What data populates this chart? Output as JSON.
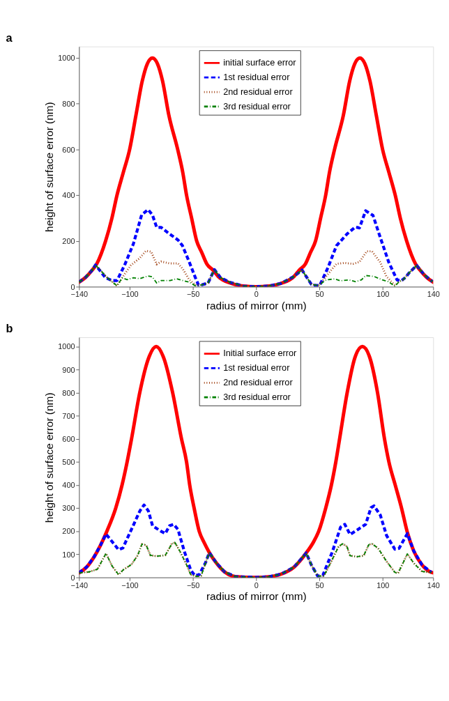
{
  "chart_data": [
    {
      "type": "line",
      "title": "a",
      "xlabel": "radius of mirror (mm)",
      "ylabel": "height of surface error (nm)",
      "xlim": [
        -140,
        140
      ],
      "xticks": [
        -140,
        -100,
        -50,
        0,
        50,
        100,
        140
      ],
      "ylim": [
        0,
        1050
      ],
      "yticks": [
        0,
        200,
        400,
        600,
        800,
        1000
      ],
      "legend": "top",
      "grid": false,
      "series": [
        {
          "name": "initial surface error",
          "color": "#ff0000",
          "line_style": "solid",
          "x": [
            -140,
            -135,
            -130,
            -126,
            -119,
            -114,
            -110,
            -105,
            -100,
            -95,
            -90,
            -86,
            -82,
            -78,
            -74,
            -69,
            -62,
            -58,
            -55,
            -51,
            -47,
            -43,
            -39,
            -34,
            -30,
            -20,
            -10,
            0,
            10,
            20,
            30,
            34,
            39,
            43,
            47,
            51,
            55,
            58,
            62,
            69,
            74,
            78,
            82,
            86,
            90,
            95,
            100,
            105,
            110,
            114,
            119,
            126,
            130,
            135,
            140
          ],
          "values": [
            20,
            40,
            70,
            100,
            200,
            300,
            400,
            500,
            600,
            750,
            900,
            975,
            1000,
            975,
            900,
            750,
            600,
            500,
            400,
            300,
            200,
            150,
            100,
            72,
            45,
            15,
            3,
            0,
            3,
            15,
            45,
            72,
            100,
            150,
            200,
            300,
            400,
            500,
            600,
            750,
            900,
            975,
            1000,
            975,
            900,
            750,
            600,
            500,
            400,
            300,
            200,
            100,
            70,
            40,
            20
          ]
        },
        {
          "name": "1st residual error",
          "color": "#0000ff",
          "line_style": "dashed",
          "x": [
            -140,
            -135,
            -130,
            -127,
            -119,
            -114,
            -110,
            -104,
            -97,
            -90.5,
            -85.4,
            -82,
            -78.6,
            -75,
            -68.5,
            -61.7,
            -58.3,
            -53,
            -48,
            -45.6,
            -43,
            -38,
            -33,
            -28,
            -21,
            -10,
            0,
            10,
            20,
            30,
            36.3,
            43.7,
            47,
            50.3,
            56.9,
            63.5,
            71.8,
            78.4,
            81.7,
            86.6,
            92.4,
            98,
            104.8,
            111.4,
            114.7,
            118,
            121,
            127,
            132.8,
            139.4
          ],
          "values": [
            20,
            40,
            70,
            95,
            39,
            27,
            27,
            94,
            188,
            314,
            337,
            314,
            259,
            259,
            231,
            204,
            180,
            110,
            39,
            8,
            8,
            16,
            75,
            39,
            20,
            3,
            0,
            3,
            15,
            45,
            73,
            10,
            6,
            6,
            85,
            179,
            230,
            261,
            257,
            332,
            312,
            218,
            108,
            30,
            26,
            40,
            61,
            93,
            53,
            22
          ]
        },
        {
          "name": "2nd residual error",
          "color": "#993300",
          "line_style": "dotted",
          "x": [
            -140,
            -135,
            -130,
            -127,
            -117.6,
            -110,
            -104,
            -99,
            -92,
            -87,
            -83,
            -78.6,
            -75,
            -68.5,
            -61.7,
            -58,
            -53,
            -48,
            -43,
            -38,
            -33,
            -28,
            -21,
            -10,
            0,
            10,
            20,
            30,
            36.3,
            43.7,
            49.5,
            55.3,
            63.5,
            70,
            76.7,
            81.7,
            87.5,
            91.6,
            98,
            103,
            109.7,
            113,
            116.3,
            121,
            127,
            132.8,
            139.4
          ],
          "values": [
            20,
            40,
            70,
            95,
            39,
            4,
            55,
            94,
            125,
            157,
            153,
            98,
            110,
            102,
            102,
            78,
            31,
            8,
            8,
            16,
            75,
            39,
            20,
            3,
            0,
            3,
            15,
            45,
            73,
            10,
            5,
            45,
            100,
            104,
            100,
            108,
            155,
            155,
            108,
            45,
            6,
            22,
            30,
            61,
            93,
            53,
            22
          ]
        },
        {
          "name": "3rd residual error",
          "color": "#008000",
          "line_style": "dashdot",
          "x": [
            -140,
            -135,
            -130,
            -127,
            -117.6,
            -110,
            -105.8,
            -102,
            -97,
            -92,
            -85.4,
            -82,
            -78.6,
            -75,
            -68,
            -63,
            -58,
            -53,
            -48,
            -43,
            -38,
            -33,
            -28,
            -21,
            -10,
            0,
            10,
            20,
            30,
            36.3,
            43.7,
            49.5,
            55.3,
            61.9,
            66.8,
            73.4,
            78.4,
            83.3,
            86.6,
            93.2,
            99.8,
            104.8,
            109.7,
            113,
            116.3,
            121,
            127,
            132.8,
            139.4
          ],
          "values": [
            20,
            40,
            70,
            95,
            39,
            4,
            39,
            31,
            39,
            35,
            47,
            43,
            16,
            27,
            27,
            35,
            27,
            20,
            4,
            8,
            16,
            75,
            39,
            20,
            3,
            0,
            3,
            15,
            45,
            73,
            10,
            5,
            30,
            34,
            26,
            30,
            22,
            30,
            49,
            45,
            30,
            22,
            2,
            22,
            30,
            61,
            93,
            53,
            22
          ]
        }
      ]
    },
    {
      "type": "line",
      "title": "b",
      "xlabel": "radius of mirror (mm)",
      "ylabel": "height of surface error (nm)",
      "xlim": [
        -140,
        140
      ],
      "xticks": [
        -140,
        -100,
        -50,
        0,
        50,
        100,
        140
      ],
      "ylim": [
        0,
        1040
      ],
      "yticks": [
        0,
        100,
        200,
        300,
        400,
        500,
        600,
        700,
        800,
        900,
        1000
      ],
      "legend": "top",
      "grid": false,
      "series": [
        {
          "name": "Initial surface error",
          "color": "#ff0000",
          "line_style": "solid",
          "x": [
            -140,
            -134,
            -128,
            -123,
            -118,
            -111,
            -106,
            -102,
            -98.5,
            -92,
            -85,
            -79,
            -73,
            -66,
            -59,
            -55,
            -52.5,
            -49,
            -45,
            -41,
            -37,
            -31.6,
            -24.9,
            -16.5,
            0,
            10,
            20,
            30,
            39.6,
            45,
            49.5,
            55,
            59.5,
            63,
            66,
            72,
            78,
            84,
            90,
            96,
            101.5,
            105,
            110,
            115,
            119.6,
            124.6,
            131.2,
            138.6,
            140
          ],
          "values": [
            20,
            45,
            90,
            140,
            200,
            300,
            400,
            500,
            600,
            800,
            950,
            1000,
            950,
            800,
            600,
            500,
            400,
            300,
            200,
            150,
            108,
            64,
            24,
            4,
            0,
            3,
            15,
            45,
            106,
            150,
            200,
            300,
            400,
            500,
            600,
            800,
            950,
            1000,
            950,
            800,
            600,
            500,
            400,
            300,
            195,
            115,
            54,
            22,
            20
          ]
        },
        {
          "name": "1st residual error",
          "color": "#0000ff",
          "line_style": "dashed",
          "x": [
            -140,
            -134,
            -128,
            -123,
            -118.7,
            -108.7,
            -105.3,
            -98.6,
            -91.9,
            -88.6,
            -85.2,
            -81.9,
            -75.2,
            -71.8,
            -68.5,
            -65.2,
            -61.8,
            -56.7,
            -51.7,
            -48.4,
            -45,
            -40,
            -37,
            -31.6,
            -24.9,
            -16.5,
            0,
            10,
            20,
            30,
            39.6,
            43.7,
            48.7,
            52.8,
            60.2,
            66.8,
            70.1,
            74.3,
            80,
            86.6,
            90.8,
            93.2,
            98.2,
            103.1,
            109.7,
            113,
            119.6,
            124.6,
            131.2,
            138.6
          ],
          "values": [
            20,
            45,
            90,
            140,
            188,
            120,
            128,
            208,
            288,
            314,
            288,
            224,
            200,
            190,
            224,
            230,
            208,
            112,
            32,
            8,
            12,
            64,
            108,
            64,
            24,
            4,
            0,
            3,
            15,
            45,
            106,
            54,
            6,
            10,
            110,
            218,
            230,
            186,
            206,
            230,
            302,
            310,
            270,
            182,
            122,
            126,
            190,
            115,
            54,
            22
          ]
        },
        {
          "name": "2nd residual error",
          "color": "#993300",
          "line_style": "dotted",
          "x": [
            -140,
            -132,
            -125.4,
            -118.7,
            -113.7,
            -108.7,
            -105.3,
            -98.6,
            -93.6,
            -90.3,
            -86.9,
            -83.6,
            -78.5,
            -71.8,
            -66.8,
            -64.3,
            -60.1,
            -55.1,
            -51.7,
            -46.7,
            -43.4,
            -37,
            -31.6,
            -24.9,
            -16.5,
            0,
            10,
            20,
            30,
            39.6,
            43.7,
            48.7,
            53.6,
            60.2,
            65.2,
            68.5,
            71.8,
            74.3,
            80,
            85,
            89.1,
            91.6,
            96.5,
            103.1,
            109.7,
            112.2,
            119.6,
            124.6,
            131.2,
            138.6
          ],
          "values": [
            20,
            24,
            36,
            104,
            48,
            12,
            32,
            56,
            96,
            144,
            140,
            96,
            92,
            96,
            144,
            152,
            112,
            56,
            12,
            4,
            8,
            108,
            64,
            24,
            4,
            0,
            3,
            15,
            45,
            106,
            54,
            6,
            6,
            78,
            134,
            146,
            134,
            94,
            90,
            94,
            142,
            146,
            126,
            70,
            22,
            18,
            102,
            62,
            26,
            22
          ]
        },
        {
          "name": "3rd residual error",
          "color": "#008000",
          "line_style": "dashdot",
          "x": [
            -140,
            -132,
            -125.4,
            -118.7,
            -113.7,
            -108.7,
            -105.3,
            -98.6,
            -93.6,
            -90.3,
            -86.9,
            -83.6,
            -78.5,
            -71.8,
            -66.8,
            -64.3,
            -60.1,
            -55.1,
            -51.7,
            -46.7,
            -43.4,
            -37,
            -31.6,
            -24.9,
            -16.5,
            0,
            10,
            20,
            30,
            39.6,
            43.7,
            48.7,
            53.6,
            60.2,
            65.2,
            68.5,
            71.8,
            74.3,
            80,
            85,
            89.1,
            91.6,
            96.5,
            103.1,
            109.7,
            112.2,
            119.6,
            124.6,
            131.2,
            138.6
          ],
          "values": [
            20,
            24,
            36,
            104,
            48,
            12,
            32,
            56,
            96,
            144,
            140,
            96,
            92,
            96,
            144,
            152,
            112,
            56,
            12,
            4,
            8,
            108,
            64,
            24,
            4,
            0,
            3,
            15,
            45,
            106,
            54,
            6,
            6,
            78,
            134,
            146,
            134,
            94,
            90,
            94,
            142,
            146,
            126,
            70,
            22,
            18,
            102,
            62,
            26,
            22
          ]
        }
      ]
    }
  ]
}
